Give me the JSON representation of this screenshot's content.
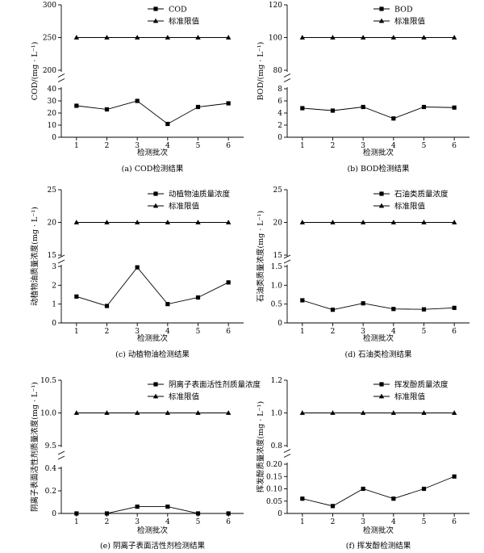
{
  "chart_data": [
    {
      "type": "line",
      "caption": "(a) COD检测结果",
      "xlabel": "检测批次",
      "ylabel": "COD/(mg · L⁻¹)",
      "x": [
        1,
        2,
        3,
        4,
        5,
        6
      ],
      "broken_y_axis": true,
      "upper": {
        "ylim": [
          200,
          300
        ],
        "ticks": [
          200,
          250,
          300
        ],
        "tick_labels": [
          "200",
          "250",
          "300"
        ]
      },
      "lower": {
        "ylim": [
          0,
          40
        ],
        "ticks": [
          0,
          10,
          20,
          30,
          40
        ],
        "tick_labels": [
          "0",
          "10",
          "20",
          "30",
          "40"
        ]
      },
      "series": [
        {
          "name": "COD",
          "marker": "square",
          "values": [
            26,
            23,
            30,
            11,
            25,
            28
          ]
        },
        {
          "name": "标准限值",
          "marker": "triangle",
          "values": [
            250,
            250,
            250,
            250,
            250,
            250
          ]
        }
      ],
      "legend": "top-right"
    },
    {
      "type": "line",
      "caption": "(b) BOD检测结果",
      "xlabel": "检测批次",
      "ylabel": "BOD/(mg · L⁻¹)",
      "x": [
        1,
        2,
        3,
        4,
        5,
        6
      ],
      "broken_y_axis": true,
      "upper": {
        "ylim": [
          80,
          120
        ],
        "ticks": [
          80,
          100,
          120
        ],
        "tick_labels": [
          "80",
          "100",
          "120"
        ]
      },
      "lower": {
        "ylim": [
          0,
          8
        ],
        "ticks": [
          0,
          2,
          4,
          6,
          8
        ],
        "tick_labels": [
          "0",
          "2",
          "4",
          "6",
          "8"
        ]
      },
      "series": [
        {
          "name": "BOD",
          "marker": "square",
          "values": [
            4.8,
            4.4,
            5.0,
            3.1,
            5.0,
            4.9
          ]
        },
        {
          "name": "标准限值",
          "marker": "triangle",
          "values": [
            100,
            100,
            100,
            100,
            100,
            100
          ]
        }
      ],
      "legend": "top-right"
    },
    {
      "type": "line",
      "caption": "(c) 动植物油检测结果",
      "xlabel": "检测批次",
      "ylabel": "动植物油质量浓度(mg · L⁻¹)",
      "x": [
        1,
        2,
        3,
        4,
        5,
        6
      ],
      "broken_y_axis": true,
      "upper": {
        "ylim": [
          15,
          25
        ],
        "ticks": [
          15,
          20,
          25
        ],
        "tick_labels": [
          "15",
          "20",
          "25"
        ]
      },
      "lower": {
        "ylim": [
          0,
          3
        ],
        "ticks": [
          0,
          1,
          2,
          3
        ],
        "tick_labels": [
          "0",
          "1",
          "2",
          "3"
        ]
      },
      "series": [
        {
          "name": "动植物油质量浓度",
          "marker": "square",
          "values": [
            1.4,
            0.9,
            2.95,
            1.0,
            1.35,
            2.15
          ]
        },
        {
          "name": "标准限值",
          "marker": "triangle",
          "values": [
            20,
            20,
            20,
            20,
            20,
            20
          ]
        }
      ],
      "legend": "top-right"
    },
    {
      "type": "line",
      "caption": "(d) 石油类检测结果",
      "xlabel": "检测批次",
      "ylabel": "石油类质量浓度(mg · L⁻¹)",
      "x": [
        1,
        2,
        3,
        4,
        5,
        6
      ],
      "broken_y_axis": true,
      "upper": {
        "ylim": [
          15,
          25
        ],
        "ticks": [
          15,
          20,
          25
        ],
        "tick_labels": [
          "15",
          "20",
          "25"
        ]
      },
      "lower": {
        "ylim": [
          0,
          1.5
        ],
        "ticks": [
          0,
          0.5,
          1.0,
          1.5
        ],
        "tick_labels": [
          "0",
          "0.5",
          "1.0",
          "1.5"
        ]
      },
      "series": [
        {
          "name": "石油类质量浓度",
          "marker": "square",
          "values": [
            0.6,
            0.35,
            0.52,
            0.37,
            0.36,
            0.4
          ]
        },
        {
          "name": "标准限值",
          "marker": "triangle",
          "values": [
            20,
            20,
            20,
            20,
            20,
            20
          ]
        }
      ],
      "legend": "top-right"
    },
    {
      "type": "line",
      "caption": "(e) 阴离子表面活性剂检测结果",
      "xlabel": "检测批次",
      "ylabel": "阴离子表面活性剂质量浓度(mg · L⁻¹)",
      "x": [
        1,
        2,
        3,
        4,
        5,
        6
      ],
      "broken_y_axis": true,
      "upper": {
        "ylim": [
          9.5,
          10.5
        ],
        "ticks": [
          9.5,
          10.0,
          10.5
        ],
        "tick_labels": [
          "9.5",
          "10.0",
          "10.5"
        ]
      },
      "lower": {
        "ylim": [
          0,
          0.4
        ],
        "ticks": [
          0,
          0.2,
          0.4
        ],
        "tick_labels": [
          "0",
          "0.2",
          "0.4"
        ]
      },
      "series": [
        {
          "name": "阴离子表面活性剂质量浓度",
          "marker": "square",
          "values": [
            0.0,
            0.0,
            0.06,
            0.06,
            0.0,
            0.0
          ]
        },
        {
          "name": "标准限值",
          "marker": "triangle",
          "values": [
            10,
            10,
            10,
            10,
            10,
            10
          ]
        }
      ],
      "legend": "top-right"
    },
    {
      "type": "line",
      "caption": "(f) 挥发酚检测结果",
      "xlabel": "检测批次",
      "ylabel": "挥发酚质量浓度(mg · L⁻¹)",
      "x": [
        1,
        2,
        3,
        4,
        5,
        6
      ],
      "broken_y_axis": true,
      "upper": {
        "ylim": [
          0.8,
          1.2
        ],
        "ticks": [
          0.8,
          1.0,
          1.2
        ],
        "tick_labels": [
          "0.8",
          "1.0",
          "1.2"
        ]
      },
      "lower": {
        "ylim": [
          0,
          0.2
        ],
        "ticks": [
          0,
          0.05,
          0.1,
          0.15,
          0.2
        ],
        "tick_labels": [
          "0",
          "0.05",
          "0.10",
          "0.15",
          "0.20"
        ]
      },
      "series": [
        {
          "name": "挥发酚质量浓度",
          "marker": "square",
          "values": [
            0.06,
            0.03,
            0.1,
            0.06,
            0.1,
            0.15
          ]
        },
        {
          "name": "标准限值",
          "marker": "triangle",
          "values": [
            1,
            1,
            1,
            1,
            1,
            1
          ]
        }
      ],
      "legend": "top-right"
    }
  ]
}
